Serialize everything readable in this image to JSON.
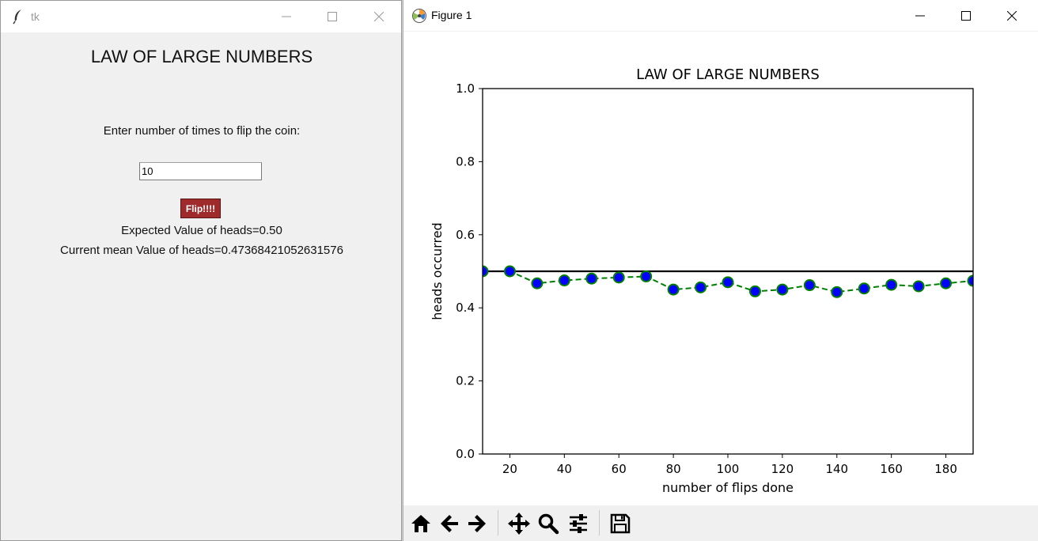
{
  "tk_window": {
    "title": "tk",
    "heading": "LAW OF LARGE NUMBERS",
    "prompt": "Enter number of times to flip the coin:",
    "entry_value": "10",
    "flip_button_label": "Flip!!!!",
    "flip_button_color": "#9e2a2b",
    "expected_text": "Expected Value of heads=0.50",
    "current_text": "Current mean Value of heads=0.47368421052631576"
  },
  "figure_window": {
    "title": "Figure 1",
    "toolbar": {
      "buttons": [
        "home-icon",
        "back-arrow-icon",
        "forward-arrow-icon",
        "pan-icon",
        "zoom-icon",
        "subplots-config-icon",
        "save-icon"
      ]
    }
  },
  "chart_data": {
    "type": "line",
    "title": "LAW OF LARGE NUMBERS",
    "xlabel": "number of flips done",
    "ylabel": "heads occurred",
    "xlim": [
      10,
      190
    ],
    "ylim": [
      0.0,
      1.0
    ],
    "xticks": [
      20,
      40,
      60,
      80,
      100,
      120,
      140,
      160,
      180
    ],
    "yticks": [
      0.0,
      0.2,
      0.4,
      0.6,
      0.8,
      1.0
    ],
    "xtick_labels": [
      "20",
      "40",
      "60",
      "80",
      "100",
      "120",
      "140",
      "160",
      "180"
    ],
    "ytick_labels": [
      "0.0",
      "0.2",
      "0.4",
      "0.6",
      "0.8",
      "1.0"
    ],
    "grid": false,
    "series": [
      {
        "style": "dashed line with circle markers",
        "line_color": "#008000",
        "marker_face": "#0000ff",
        "marker_edge": "#008000",
        "x": [
          10,
          20,
          30,
          40,
          50,
          60,
          70,
          80,
          90,
          100,
          110,
          120,
          130,
          140,
          150,
          160,
          170,
          180,
          190
        ],
        "y": [
          0.5,
          0.5,
          0.467,
          0.475,
          0.48,
          0.483,
          0.486,
          0.45,
          0.456,
          0.47,
          0.445,
          0.45,
          0.462,
          0.443,
          0.453,
          0.463,
          0.459,
          0.467,
          0.474
        ]
      },
      {
        "style": "solid line",
        "line_color": "#000000",
        "x": [
          10,
          190
        ],
        "y": [
          0.5,
          0.5
        ]
      }
    ]
  }
}
